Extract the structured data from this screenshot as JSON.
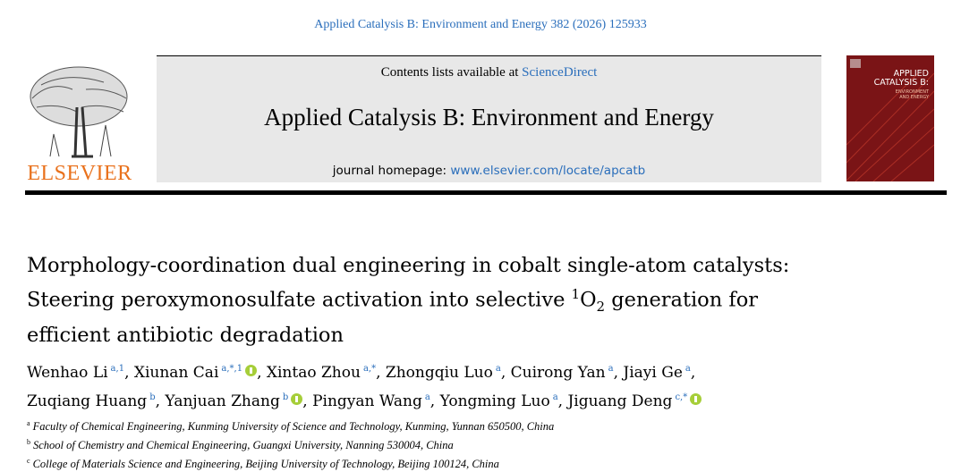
{
  "citation": "Applied Catalysis B: Environment and Energy 382 (2026) 125933",
  "header": {
    "contents_prefix": "Contents lists available at",
    "contents_link": "ScienceDirect",
    "journal": "Applied Catalysis B: Environment and Energy",
    "homepage_prefix": "journal homepage:",
    "homepage_link": "www.elsevier.com/locate/apcatb",
    "publisher": "ELSEVIER",
    "cover_title": [
      "APPLIED",
      "CATALYSIS B:"
    ],
    "cover_subtitle": [
      "ENVIRONMENT",
      "AND ENERGY"
    ]
  },
  "title": {
    "line1": "Morphology-coordination dual engineering in cobalt single-atom catalysts:",
    "line2_before": "Steering peroxymonosulfate activation into selective",
    "line2_sup": "1",
    "line2_o": "O",
    "line2_sub": "2",
    "line2_after": "generation for",
    "line3": "efficient antibiotic degradation"
  },
  "authors": {
    "separator": ",",
    "lines": [
      [
        {
          "name": "Wenhao Li",
          "sup": "a,1",
          "orcid": false
        },
        {
          "name": "Xiunan Cai",
          "sup": "a,*,1",
          "orcid": true
        },
        {
          "name": "Xintao Zhou",
          "sup": "a,*",
          "orcid": false
        },
        {
          "name": "Zhongqiu Luo",
          "sup": "a",
          "orcid": false
        },
        {
          "name": "Cuirong Yan",
          "sup": "a",
          "orcid": false
        },
        {
          "name": "Jiayi Ge",
          "sup": "a",
          "orcid": false
        }
      ],
      [
        {
          "name": "Zuqiang Huang",
          "sup": "b",
          "orcid": false
        },
        {
          "name": "Yanjuan Zhang",
          "sup": "b",
          "orcid": true
        },
        {
          "name": "Pingyan Wang",
          "sup": "a",
          "orcid": false
        },
        {
          "name": "Yongming Luo",
          "sup": "a",
          "orcid": false
        },
        {
          "name": "Jiguang Deng",
          "sup": "c,*",
          "orcid": true
        }
      ]
    ]
  },
  "affiliations": [
    {
      "label": "a",
      "text": "Faculty of Chemical Engineering, Kunming University of Science and Technology, Kunming, Yunnan 650500, China"
    },
    {
      "label": "b",
      "text": "School of Chemistry and Chemical Engineering, Guangxi University, Nanning 530004, China"
    },
    {
      "label": "c",
      "text": "College of Materials Science and Engineering, Beijing University of Technology, Beijing 100124, China"
    }
  ]
}
